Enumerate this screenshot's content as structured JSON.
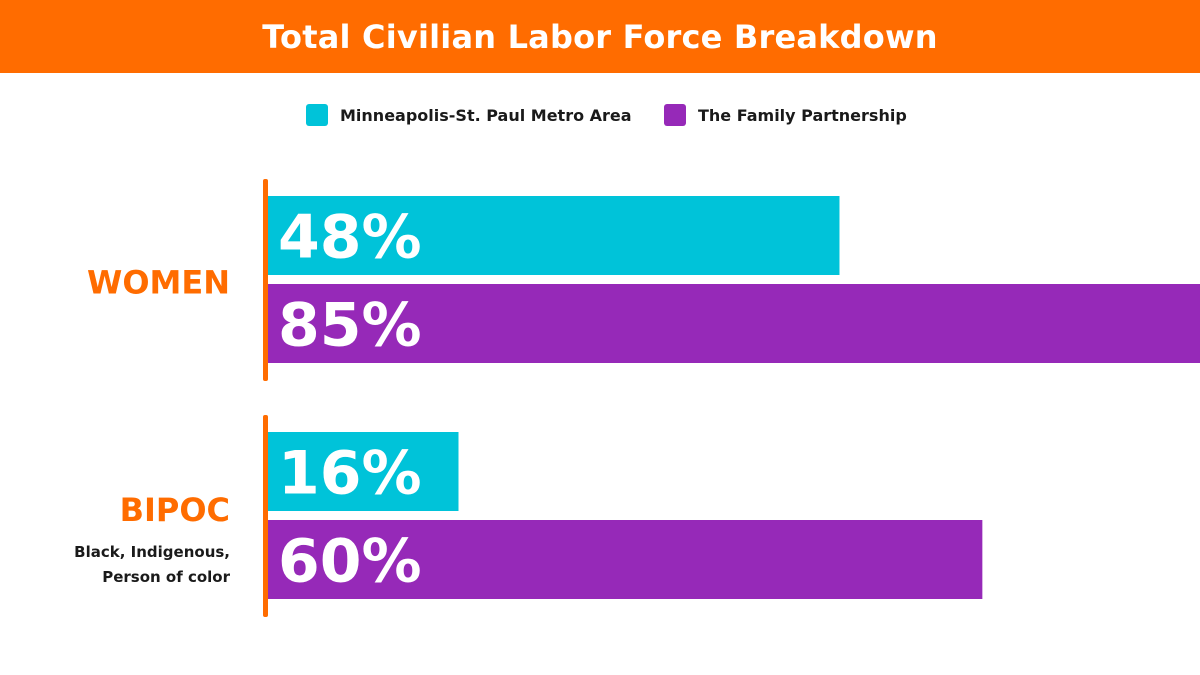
{
  "title": "Total Civilian Labor Force Breakdown",
  "colors": {
    "banner": "#ff6c00",
    "accent_text": "#ff6c00",
    "axis_line": "#ff6c00",
    "metro": "#00c3d9",
    "family": "#9629b8"
  },
  "legend": [
    {
      "label": "Minneapolis-St. Paul Metro Area",
      "color": "#00c3d9"
    },
    {
      "label": "The Family Partnership",
      "color": "#9629b8"
    }
  ],
  "chart_data": {
    "type": "bar",
    "orientation": "horizontal",
    "title": "Total Civilian Labor Force Breakdown",
    "categories": [
      "WOMEN",
      "BIPOC"
    ],
    "category_sublabels": [
      "",
      "Black, Indigenous,\nPerson of color"
    ],
    "series": [
      {
        "name": "Minneapolis-St. Paul Metro Area",
        "values": [
          48,
          16
        ],
        "labels": [
          "48%",
          "16%"
        ],
        "color": "#00c3d9"
      },
      {
        "name": "The Family Partnership",
        "values": [
          85,
          60
        ],
        "labels": [
          "85%",
          "60%"
        ],
        "color": "#9629b8"
      }
    ],
    "xlim": [
      0,
      100
    ],
    "unit": "%",
    "grid": false,
    "legend_position": "top-center"
  }
}
